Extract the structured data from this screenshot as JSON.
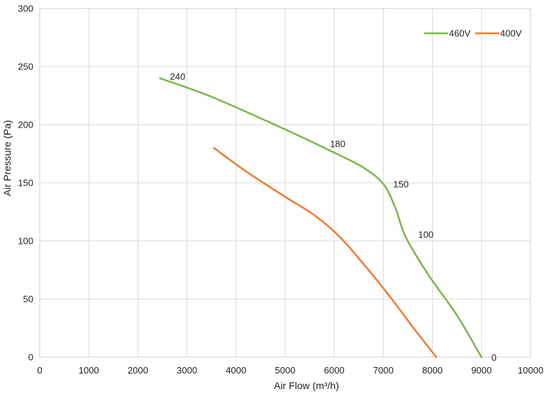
{
  "chart_data": {
    "type": "line",
    "title": "",
    "xlabel": "Air Flow  (m³/h)",
    "ylabel": "Air Pressure  (Pa)",
    "xlim": [
      0,
      10000
    ],
    "ylim": [
      0,
      300
    ],
    "xticks": [
      "0",
      "1000",
      "2000",
      "3000",
      "4000",
      "5000",
      "6000",
      "7000",
      "8000",
      "9000",
      "10000"
    ],
    "yticks": [
      "0",
      "50",
      "100",
      "150",
      "200",
      "250",
      "300"
    ],
    "grid": true,
    "legend_position": "top-right",
    "series": [
      {
        "name": "460V",
        "color": "#7ab648",
        "points": [
          [
            2450,
            240
          ],
          [
            3500,
            224
          ],
          [
            5000,
            196
          ],
          [
            6000,
            176
          ],
          [
            6600,
            163
          ],
          [
            7000,
            149
          ],
          [
            7250,
            128
          ],
          [
            7450,
            104
          ],
          [
            7900,
            72
          ],
          [
            8500,
            36
          ],
          [
            9000,
            0
          ]
        ]
      },
      {
        "name": "400V",
        "color": "#ef7a30",
        "points": [
          [
            3550,
            180
          ],
          [
            4200,
            160
          ],
          [
            5000,
            138
          ],
          [
            5600,
            122
          ],
          [
            6100,
            104
          ],
          [
            6600,
            80
          ],
          [
            7100,
            54
          ],
          [
            7600,
            26
          ],
          [
            8080,
            0
          ]
        ]
      }
    ],
    "annotations": [
      {
        "text": "240",
        "x": 2450,
        "y": 240
      },
      {
        "text": "180",
        "x": 6000,
        "y": 176
      },
      {
        "text": "150",
        "x": 7000,
        "y": 149
      },
      {
        "text": "100",
        "x": 7450,
        "y": 104
      },
      {
        "text": "0",
        "x": 9000,
        "y": 0
      }
    ]
  }
}
